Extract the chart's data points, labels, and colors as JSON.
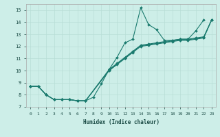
{
  "xlabel": "Humidex (Indice chaleur)",
  "ylabel": "",
  "background_color": "#cdeee8",
  "grid_color": "#b8ddd6",
  "line_color": "#1a7a6e",
  "xlim": [
    -0.5,
    23.5
  ],
  "ylim": [
    7,
    15.5
  ],
  "xticks": [
    0,
    1,
    2,
    3,
    4,
    5,
    6,
    7,
    8,
    9,
    10,
    11,
    12,
    13,
    14,
    15,
    16,
    17,
    18,
    19,
    20,
    21,
    22,
    23
  ],
  "yticks": [
    7,
    8,
    9,
    10,
    11,
    12,
    13,
    14,
    15
  ],
  "series": [
    {
      "x": [
        0,
        1,
        2,
        3,
        4,
        5,
        6,
        7,
        8,
        9,
        10,
        11,
        12,
        13,
        14,
        15,
        16,
        17,
        18,
        19,
        20,
        21,
        22
      ],
      "y": [
        8.7,
        8.7,
        8.0,
        7.6,
        7.6,
        7.6,
        7.5,
        7.5,
        7.8,
        8.9,
        10.1,
        11.1,
        12.3,
        12.6,
        15.2,
        13.8,
        13.4,
        12.5,
        12.5,
        12.6,
        12.6,
        13.3,
        14.2
      ]
    },
    {
      "x": [
        0,
        1,
        2,
        3,
        4,
        5,
        6,
        7,
        10,
        11,
        12,
        13,
        14,
        15,
        16,
        17,
        18,
        19,
        20,
        21,
        22,
        23
      ],
      "y": [
        8.7,
        8.7,
        8.0,
        7.6,
        7.6,
        7.6,
        7.5,
        7.5,
        10.0,
        10.5,
        11.0,
        11.5,
        12.0,
        12.1,
        12.2,
        12.3,
        12.4,
        12.5,
        12.5,
        12.6,
        12.7,
        14.2
      ]
    },
    {
      "x": [
        0,
        1,
        2,
        3,
        4,
        5,
        6,
        7,
        10,
        11,
        12,
        13,
        14,
        15,
        16,
        17,
        18,
        19,
        20,
        21,
        22,
        23
      ],
      "y": [
        8.7,
        8.7,
        8.0,
        7.6,
        7.6,
        7.6,
        7.5,
        7.5,
        10.05,
        10.55,
        11.05,
        11.55,
        12.05,
        12.15,
        12.25,
        12.35,
        12.45,
        12.55,
        12.55,
        12.65,
        12.75,
        14.2
      ]
    },
    {
      "x": [
        0,
        1,
        2,
        3,
        4,
        5,
        6,
        7,
        10,
        11,
        12,
        13,
        14,
        15,
        16,
        17,
        18,
        19,
        20,
        21,
        22,
        23
      ],
      "y": [
        8.7,
        8.7,
        8.0,
        7.6,
        7.6,
        7.6,
        7.5,
        7.5,
        10.1,
        10.6,
        11.1,
        11.6,
        12.1,
        12.2,
        12.3,
        12.4,
        12.5,
        12.6,
        12.6,
        12.7,
        12.8,
        14.2
      ]
    }
  ]
}
